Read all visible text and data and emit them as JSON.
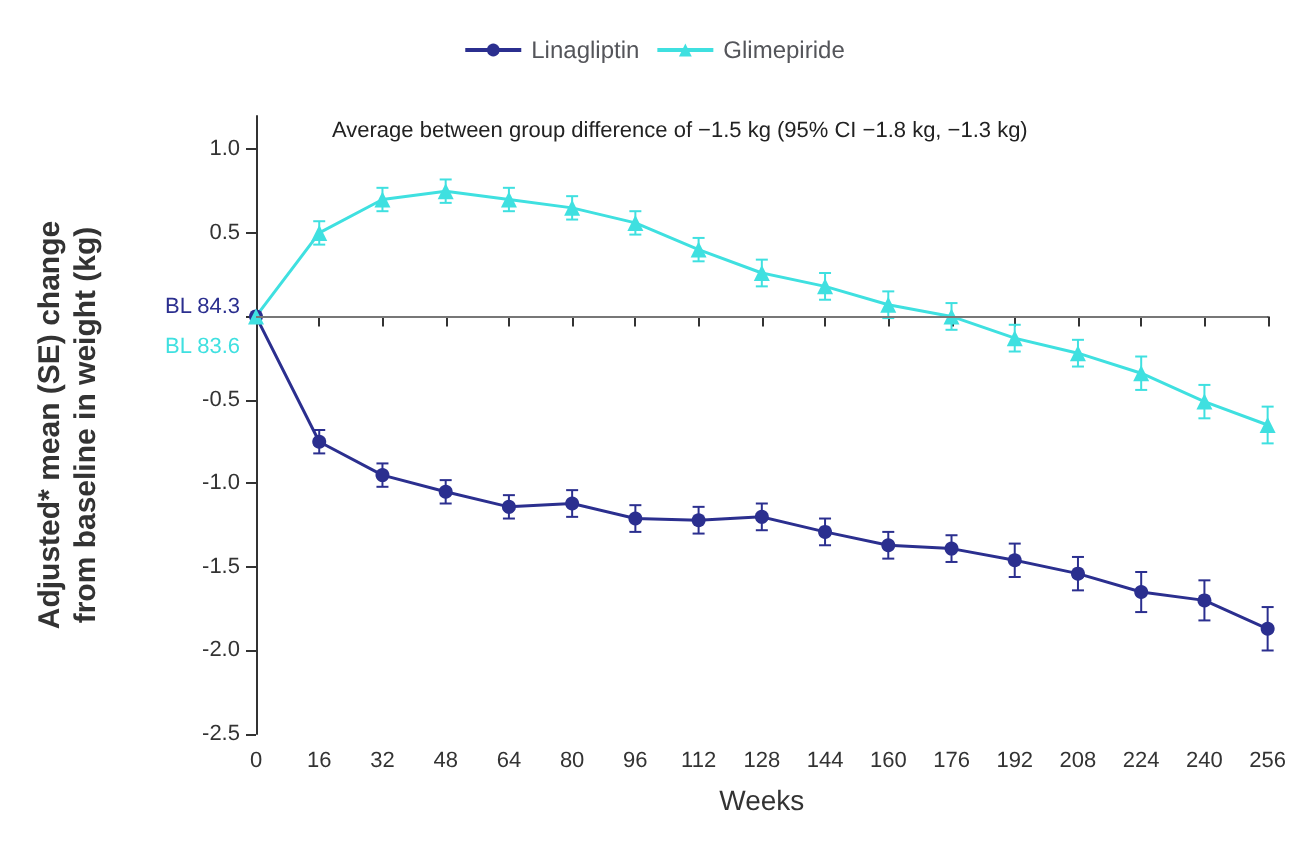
{
  "chart_data": {
    "type": "line",
    "xlabel": "Weeks",
    "ylabel": "Adjusted* mean (SE) change\nfrom baseline in weight (kg)",
    "x": [
      0,
      16,
      32,
      48,
      64,
      80,
      96,
      112,
      128,
      144,
      160,
      176,
      192,
      208,
      224,
      240,
      256
    ],
    "xlim": [
      0,
      256
    ],
    "xticks": [
      0,
      16,
      32,
      48,
      64,
      80,
      96,
      112,
      128,
      144,
      160,
      176,
      192,
      208,
      224,
      240,
      256
    ],
    "ylim": [
      -2.5,
      1.2
    ],
    "yticks": [
      {
        "value": -2.5,
        "label": "-2.5"
      },
      {
        "value": -2,
        "label": "-2.0"
      },
      {
        "value": -1.5,
        "label": "-1.5"
      },
      {
        "value": -1,
        "label": "-1.0"
      },
      {
        "value": -0.5,
        "label": "-0.5"
      },
      {
        "value": 0,
        "label": null
      },
      {
        "value": 0.5,
        "label": "0.5"
      },
      {
        "value": 1,
        "label": "1.0"
      }
    ],
    "series": [
      {
        "name": "Linagliptin",
        "color": "#2b2f8f",
        "marker": "circle",
        "values": [
          0,
          -0.75,
          -0.95,
          -1.05,
          -1.14,
          -1.12,
          -1.21,
          -1.22,
          -1.2,
          -1.29,
          -1.37,
          -1.39,
          -1.46,
          -1.54,
          -1.65,
          -1.7,
          -1.87
        ],
        "errors": [
          null,
          0.07,
          0.07,
          0.07,
          0.07,
          0.08,
          0.08,
          0.08,
          0.08,
          0.08,
          0.08,
          0.08,
          0.1,
          0.1,
          0.12,
          0.12,
          0.13
        ]
      },
      {
        "name": "Glimepiride",
        "color": "#3fe0e0",
        "marker": "triangle",
        "values": [
          0,
          0.5,
          0.7,
          0.75,
          0.7,
          0.65,
          0.56,
          0.4,
          0.26,
          0.18,
          0.07,
          0,
          -0.13,
          -0.22,
          -0.34,
          -0.51,
          -0.65
        ],
        "errors": [
          null,
          0.07,
          0.07,
          0.07,
          0.07,
          0.07,
          0.07,
          0.07,
          0.08,
          0.08,
          0.08,
          0.08,
          0.08,
          0.08,
          0.1,
          0.1,
          0.11
        ]
      }
    ],
    "ref_lines": [
      {
        "axis": "y",
        "value": 0,
        "color": "#777777"
      }
    ],
    "annotations": [
      "Average between group difference of −1.5 kg (95% CI −1.8 kg, −1.3 kg)",
      {
        "text": "BL 84.3",
        "x": 0,
        "y": 0
      },
      {
        "text": "BL 83.6",
        "x": 0,
        "y": 0
      }
    ],
    "legend": "top",
    "grid": false
  }
}
